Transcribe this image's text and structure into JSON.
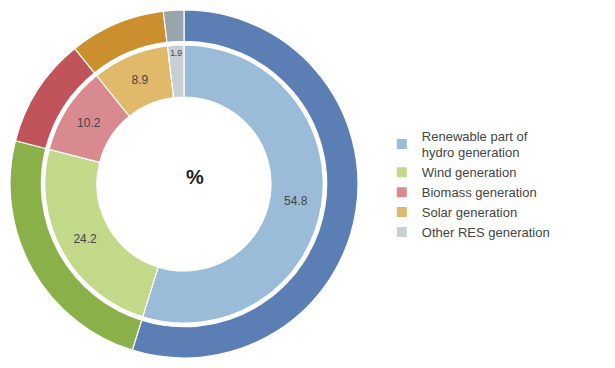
{
  "chart_data": {
    "type": "pie",
    "categories": [
      "Renewable part of\nhydro generation",
      "Wind generation",
      "Biomass generation",
      "Solar generation",
      "Other RES generation"
    ],
    "series": [
      {
        "colors": [
          "#5b7fb5",
          "#8ab04a",
          "#c0545a",
          "#cc8f2e",
          "#9aa4af"
        ],
        "values": [
          54.8,
          24.2,
          10.2,
          8.9,
          1.9
        ]
      },
      {
        "colors": [
          "#9bbcd9",
          "#c2d98a",
          "#d98a8e",
          "#e0b96a",
          "#c8cfd5"
        ],
        "values": [
          54.8,
          24.2,
          10.2,
          8.9,
          1.9
        ],
        "data_labels": true
      }
    ],
    "annotations": [
      {
        "text": "%"
      }
    ],
    "legend": "right"
  }
}
